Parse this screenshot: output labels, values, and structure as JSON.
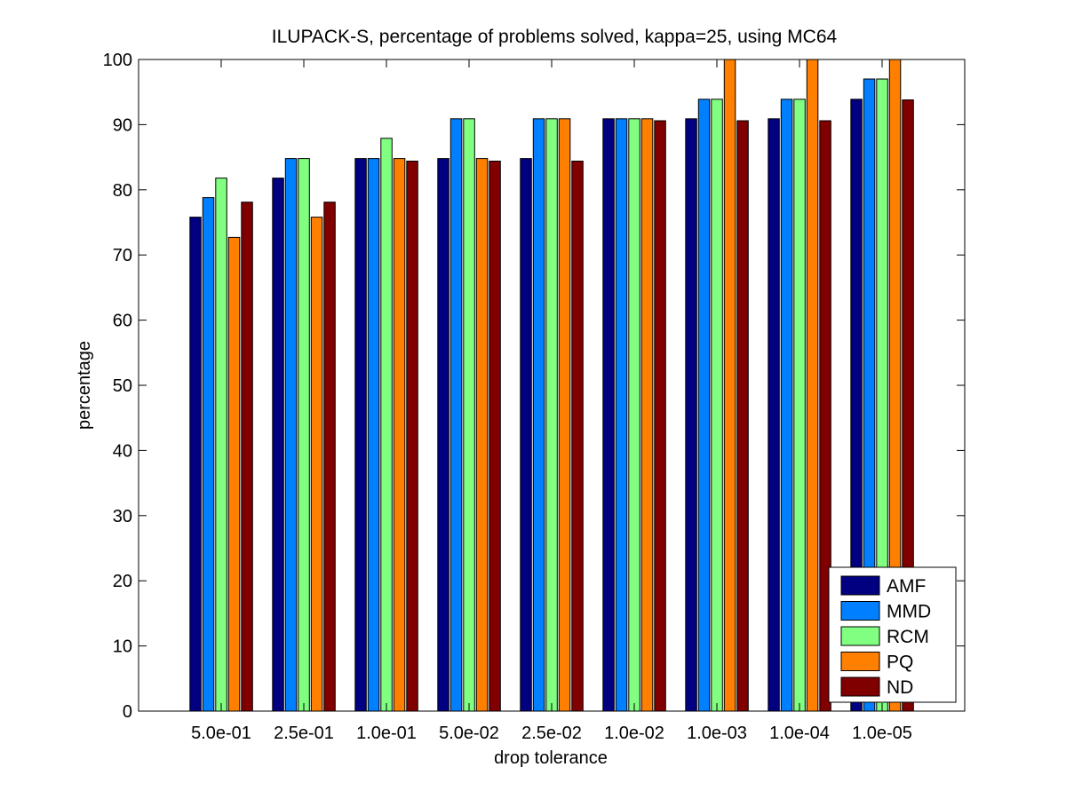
{
  "chart_data": {
    "type": "bar",
    "title": "ILUPACK-S, percentage of problems solved, kappa=25, using MC64",
    "xlabel": "drop tolerance",
    "ylabel": "percentage",
    "ylim": [
      0,
      100
    ],
    "yticks": [
      0,
      10,
      20,
      30,
      40,
      50,
      60,
      70,
      80,
      90,
      100
    ],
    "grid": false,
    "legend_position": "bottom-right",
    "categories": [
      "5.0e-01",
      "2.5e-01",
      "1.0e-01",
      "5.0e-02",
      "2.5e-02",
      "1.0e-02",
      "1.0e-03",
      "1.0e-04",
      "1.0e-05"
    ],
    "series": [
      {
        "name": "AMF",
        "color": "#000080",
        "values": [
          75.8,
          81.8,
          84.8,
          84.8,
          84.8,
          90.9,
          90.9,
          90.9,
          93.9
        ]
      },
      {
        "name": "MMD",
        "color": "#0080FF",
        "values": [
          78.8,
          84.8,
          84.8,
          90.9,
          90.9,
          90.9,
          93.9,
          93.9,
          97.0
        ]
      },
      {
        "name": "RCM",
        "color": "#80FF80",
        "values": [
          81.8,
          84.8,
          87.9,
          90.9,
          90.9,
          90.9,
          93.9,
          93.9,
          97.0
        ]
      },
      {
        "name": "PQ",
        "color": "#FF8000",
        "values": [
          72.7,
          75.8,
          84.8,
          84.8,
          90.9,
          90.9,
          100,
          100,
          100
        ]
      },
      {
        "name": "ND",
        "color": "#800000",
        "values": [
          78.1,
          78.1,
          84.4,
          84.4,
          84.4,
          90.6,
          90.6,
          90.6,
          93.8
        ]
      }
    ]
  }
}
